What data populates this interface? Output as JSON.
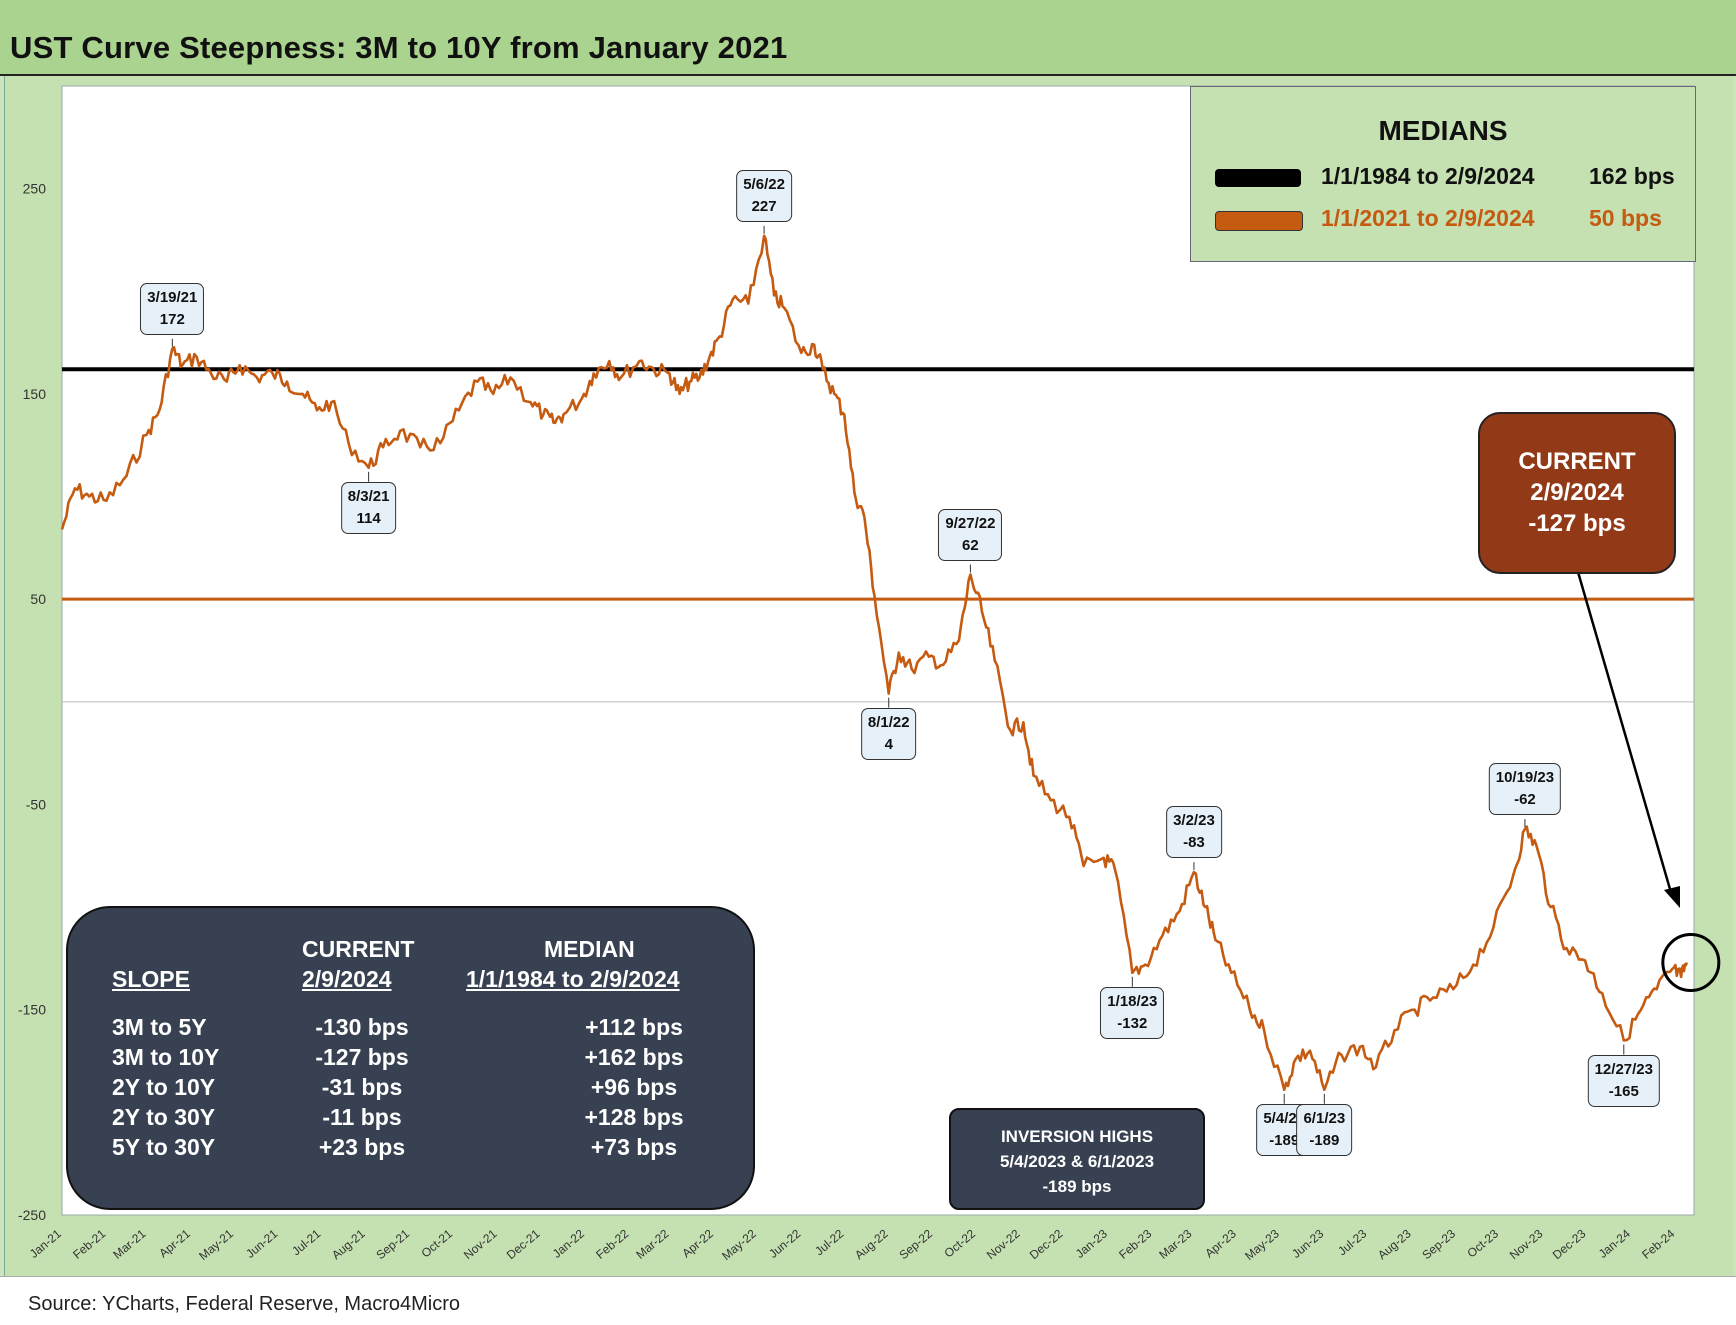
{
  "title": "UST Curve Steepness: 3M to 10Y from January 2021",
  "source": "Source: YCharts, Federal Reserve, Macro4Micro",
  "colors": {
    "series": "#c55a11",
    "median_long": "#000000",
    "median_short": "#c55a11",
    "current_box": "#923a17",
    "dark_box": "#374151",
    "bg": "#c5e1b1",
    "title_bg": "#a9d38f"
  },
  "legend": {
    "title": "MEDIANS",
    "rows": [
      {
        "label": "1/1/1984 to 2/9/2024",
        "value": "162 bps",
        "color": "#000000"
      },
      {
        "label": "1/1/2021 to 2/9/2024",
        "value": "50 bps",
        "color": "#c55a11"
      }
    ]
  },
  "current_box": {
    "line1": "CURRENT",
    "line2": "2/9/2024",
    "line3": "-127 bps"
  },
  "inversion_box": {
    "line1": "INVERSION HIGHS",
    "line2": "5/4/2023 & 6/1/2023",
    "line3": "-189 bps"
  },
  "stats_table": {
    "headers": {
      "col2_top": "CURRENT",
      "col2": "2/9/2024",
      "col3_top": "MEDIAN",
      "col3": "1/1/1984 to 2/9/2024",
      "col1": "SLOPE"
    },
    "rows": [
      {
        "slope": "3M to 5Y",
        "current": "-130 bps",
        "median": "+112 bps"
      },
      {
        "slope": "3M to 10Y",
        "current": "-127 bps",
        "median": "+162 bps"
      },
      {
        "slope": "2Y to 10Y",
        "current": "-31 bps",
        "median": "+96 bps"
      },
      {
        "slope": "2Y to 30Y",
        "current": "-11 bps",
        "median": "+128 bps"
      },
      {
        "slope": "5Y to 30Y",
        "current": "+23 bps",
        "median": "+73 bps"
      }
    ]
  },
  "chart_data": {
    "type": "line",
    "title": "UST Curve Steepness: 3M to 10Y from January 2021",
    "xlabel": "",
    "ylabel": "",
    "ylim": [
      -250,
      300
    ],
    "yticks": [
      250,
      150,
      50,
      -50,
      -150,
      -250
    ],
    "x_ticks": [
      "Jan-21",
      "Feb-21",
      "Mar-21",
      "Apr-21",
      "May-21",
      "Jun-21",
      "Jul-21",
      "Aug-21",
      "Sep-21",
      "Oct-21",
      "Nov-21",
      "Dec-21",
      "Jan-22",
      "Feb-22",
      "Mar-22",
      "Apr-22",
      "May-22",
      "Jun-22",
      "Jul-22",
      "Aug-22",
      "Sep-22",
      "Oct-22",
      "Nov-22",
      "Dec-22",
      "Jan-23",
      "Feb-23",
      "Mar-23",
      "Apr-23",
      "May-23",
      "Jun-23",
      "Jul-23",
      "Aug-23",
      "Sep-23",
      "Oct-23",
      "Nov-23",
      "Dec-23",
      "Jan-24",
      "Feb-24"
    ],
    "series": [
      {
        "values": [
          [
            "2021-01-01",
            84
          ],
          [
            "2021-01-10",
            104
          ],
          [
            "2021-01-20",
            100
          ],
          [
            "2021-02-01",
            98
          ],
          [
            "2021-02-15",
            110
          ],
          [
            "2021-03-01",
            130
          ],
          [
            "2021-03-10",
            142
          ],
          [
            "2021-03-19",
            172
          ],
          [
            "2021-03-26",
            164
          ],
          [
            "2021-04-05",
            168
          ],
          [
            "2021-04-15",
            160
          ],
          [
            "2021-04-26",
            156
          ],
          [
            "2021-05-05",
            164
          ],
          [
            "2021-05-17",
            158
          ],
          [
            "2021-05-28",
            160
          ],
          [
            "2021-06-07",
            156
          ],
          [
            "2021-06-18",
            150
          ],
          [
            "2021-06-28",
            142
          ],
          [
            "2021-07-08",
            146
          ],
          [
            "2021-07-20",
            126
          ],
          [
            "2021-08-03",
            114
          ],
          [
            "2021-08-13",
            124
          ],
          [
            "2021-08-25",
            132
          ],
          [
            "2021-09-08",
            124
          ],
          [
            "2021-09-22",
            126
          ],
          [
            "2021-10-05",
            142
          ],
          [
            "2021-10-18",
            156
          ],
          [
            "2021-10-29",
            150
          ],
          [
            "2021-11-10",
            158
          ],
          [
            "2021-11-24",
            146
          ],
          [
            "2021-12-03",
            140
          ],
          [
            "2021-12-10",
            136
          ],
          [
            "2021-12-17",
            140
          ],
          [
            "2021-12-30",
            148
          ],
          [
            "2022-01-07",
            160
          ],
          [
            "2022-01-18",
            166
          ],
          [
            "2022-01-26",
            158
          ],
          [
            "2022-02-08",
            166
          ],
          [
            "2022-02-18",
            162
          ],
          [
            "2022-03-01",
            160
          ],
          [
            "2022-03-08",
            150
          ],
          [
            "2022-03-15",
            156
          ],
          [
            "2022-03-22",
            158
          ],
          [
            "2022-03-29",
            168
          ],
          [
            "2022-04-05",
            178
          ],
          [
            "2022-04-14",
            196
          ],
          [
            "2022-04-25",
            194
          ],
          [
            "2022-05-06",
            227
          ],
          [
            "2022-05-13",
            198
          ],
          [
            "2022-05-20",
            192
          ],
          [
            "2022-06-01",
            170
          ],
          [
            "2022-06-10",
            174
          ],
          [
            "2022-06-16",
            162
          ],
          [
            "2022-06-24",
            150
          ],
          [
            "2022-07-01",
            140
          ],
          [
            "2022-07-08",
            102
          ],
          [
            "2022-07-15",
            90
          ],
          [
            "2022-07-22",
            52
          ],
          [
            "2022-08-01",
            4
          ],
          [
            "2022-08-08",
            24
          ],
          [
            "2022-08-17",
            16
          ],
          [
            "2022-08-29",
            22
          ],
          [
            "2022-09-08",
            18
          ],
          [
            "2022-09-19",
            30
          ],
          [
            "2022-09-27",
            62
          ],
          [
            "2022-10-05",
            44
          ],
          [
            "2022-10-14",
            20
          ],
          [
            "2022-10-25",
            -14
          ],
          [
            "2022-11-03",
            -10
          ],
          [
            "2022-11-10",
            -36
          ],
          [
            "2022-11-22",
            -48
          ],
          [
            "2022-12-05",
            -56
          ],
          [
            "2022-12-15",
            -80
          ],
          [
            "2022-12-29",
            -76
          ],
          [
            "2023-01-06",
            -82
          ],
          [
            "2023-01-18",
            -132
          ],
          [
            "2023-01-27",
            -128
          ],
          [
            "2023-02-08",
            -114
          ],
          [
            "2023-02-20",
            -102
          ],
          [
            "2023-03-02",
            -83
          ],
          [
            "2023-03-10",
            -100
          ],
          [
            "2023-03-17",
            -116
          ],
          [
            "2023-03-28",
            -132
          ],
          [
            "2023-04-10",
            -150
          ],
          [
            "2023-04-20",
            -160
          ],
          [
            "2023-05-04",
            -189
          ],
          [
            "2023-05-12",
            -174
          ],
          [
            "2023-05-22",
            -170
          ],
          [
            "2023-06-01",
            -189
          ],
          [
            "2023-06-13",
            -172
          ],
          [
            "2023-06-26",
            -168
          ],
          [
            "2023-07-07",
            -178
          ],
          [
            "2023-07-20",
            -160
          ],
          [
            "2023-08-03",
            -150
          ],
          [
            "2023-08-16",
            -144
          ],
          [
            "2023-08-30",
            -140
          ],
          [
            "2023-09-13",
            -128
          ],
          [
            "2023-09-27",
            -110
          ],
          [
            "2023-10-11",
            -84
          ],
          [
            "2023-10-19",
            -62
          ],
          [
            "2023-10-27",
            -70
          ],
          [
            "2023-11-06",
            -100
          ],
          [
            "2023-11-17",
            -120
          ],
          [
            "2023-11-30",
            -126
          ],
          [
            "2023-12-12",
            -142
          ],
          [
            "2023-12-27",
            -165
          ],
          [
            "2024-01-08",
            -150
          ],
          [
            "2024-01-19",
            -140
          ],
          [
            "2024-01-30",
            -130
          ],
          [
            "2024-02-05",
            -134
          ],
          [
            "2024-02-09",
            -127
          ]
        ]
      },
      {
        "name": "1/1/1984 to 2/9/2024",
        "type": "hline",
        "y": 162
      },
      {
        "name": "1/1/2021 to 2/9/2024",
        "type": "hline",
        "y": 50
      }
    ],
    "annotations": [
      {
        "date": "2021-03-19",
        "label": "3/19/21",
        "value": "172",
        "pos": "above"
      },
      {
        "date": "2021-08-03",
        "label": "8/3/21",
        "value": "114",
        "pos": "below"
      },
      {
        "date": "2022-05-06",
        "label": "5/6/22",
        "value": "227",
        "pos": "above"
      },
      {
        "date": "2022-08-01",
        "label": "8/1/22",
        "value": "4",
        "pos": "below"
      },
      {
        "date": "2022-09-27",
        "label": "9/27/22",
        "value": "62",
        "pos": "above"
      },
      {
        "date": "2023-01-18",
        "label": "1/18/23",
        "value": "-132",
        "pos": "below"
      },
      {
        "date": "2023-03-02",
        "label": "3/2/23",
        "value": "-83",
        "pos": "above"
      },
      {
        "date": "2023-05-04",
        "label": "5/4/23",
        "value": "-189",
        "pos": "below"
      },
      {
        "date": "2023-06-01",
        "label": "6/1/23",
        "value": "-189",
        "pos": "below"
      },
      {
        "date": "2023-10-19",
        "label": "10/19/23",
        "value": "-62",
        "pos": "above"
      },
      {
        "date": "2023-12-27",
        "label": "12/27/23",
        "value": "-165",
        "pos": "below"
      }
    ],
    "legend_position": "top-right",
    "grid": false
  }
}
